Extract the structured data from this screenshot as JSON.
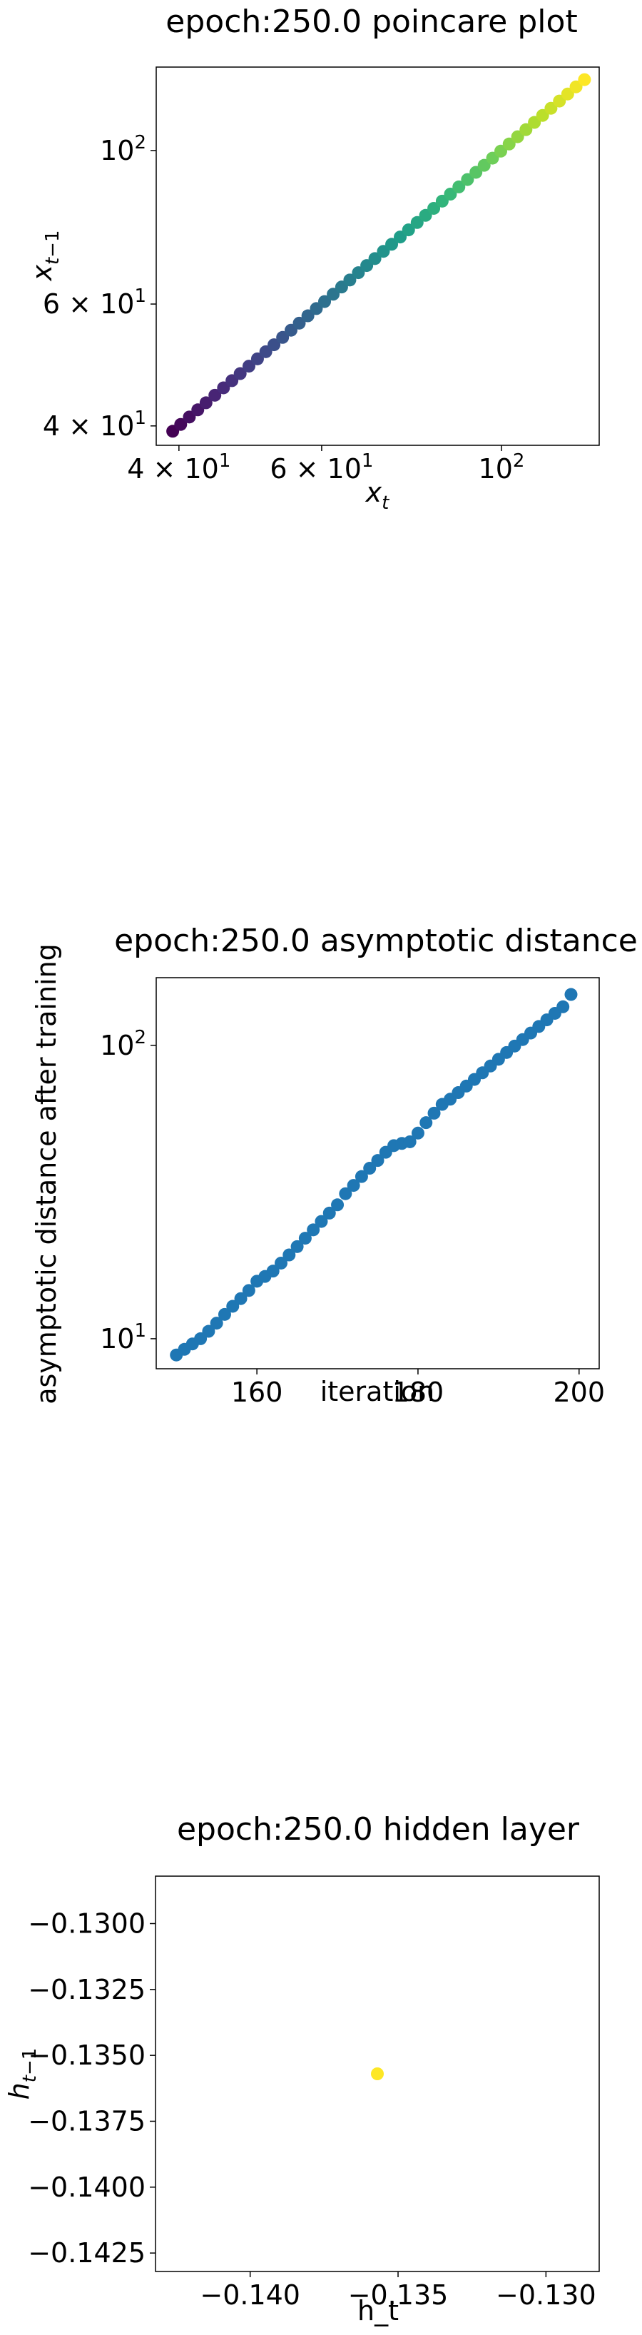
{
  "chart_data": [
    {
      "type": "scatter",
      "title": "epoch:250.0 poincare plot",
      "xlabel": "x_t",
      "ylabel": "x_{t-1}",
      "xscale": "log",
      "yscale": "log",
      "xlim": [
        37.5,
        132
      ],
      "ylim": [
        37.5,
        132
      ],
      "colormap": "viridis",
      "x_ticks": [
        {
          "value": 40,
          "mant": "4",
          "exp": "1"
        },
        {
          "value": 60,
          "mant": "6",
          "exp": "1"
        },
        {
          "value": 100,
          "mant": "",
          "exp": "2"
        }
      ],
      "y_ticks": [
        {
          "value": 40,
          "mant": "4",
          "exp": "1"
        },
        {
          "value": 60,
          "mant": "6",
          "exp": "1"
        },
        {
          "value": 100,
          "mant": "",
          "exp": "2"
        }
      ],
      "x": [
        39.3,
        40.2,
        41.2,
        42.2,
        43.2,
        44.3,
        45.4,
        46.5,
        47.6,
        48.8,
        50.0,
        51.2,
        52.4,
        53.7,
        55.0,
        56.3,
        57.7,
        59.1,
        60.5,
        62.0,
        63.5,
        65.0,
        66.6,
        68.2,
        69.8,
        71.5,
        73.2,
        75.0,
        76.8,
        78.7,
        80.6,
        82.5,
        84.5,
        86.5,
        88.6,
        90.8,
        93.0,
        95.2,
        97.5,
        99.8,
        102.2,
        104.7,
        107.2,
        109.8,
        112.4,
        115.1,
        117.9,
        120.7,
        123.6,
        126.6
      ],
      "y": [
        39.3,
        40.2,
        41.2,
        42.2,
        43.2,
        44.3,
        45.4,
        46.5,
        47.6,
        48.8,
        50.0,
        51.2,
        52.4,
        53.7,
        55.0,
        56.3,
        57.7,
        59.1,
        60.5,
        62.0,
        63.5,
        65.0,
        66.6,
        68.2,
        69.8,
        71.5,
        73.2,
        75.0,
        76.8,
        78.7,
        80.6,
        82.5,
        84.5,
        86.5,
        88.6,
        90.8,
        93.0,
        95.2,
        97.5,
        99.8,
        102.2,
        104.7,
        107.2,
        109.8,
        112.4,
        115.1,
        117.9,
        120.7,
        123.6,
        126.6
      ],
      "grid": false
    },
    {
      "type": "scatter",
      "title": "epoch:250.0 asymptotic distance",
      "xlabel": "iteration",
      "ylabel": "asymptotic distance after training",
      "xscale": "linear",
      "yscale": "log",
      "xlim": [
        147.5,
        202.5
      ],
      "ylim": [
        7.9,
        170
      ],
      "color": "#1f77b4",
      "x_ticks": [
        {
          "value": 160,
          "label": "160"
        },
        {
          "value": 180,
          "label": "180"
        },
        {
          "value": 200,
          "label": "200"
        }
      ],
      "y_ticks": [
        {
          "value": 10,
          "mant": "",
          "exp": "1"
        },
        {
          "value": 100,
          "mant": "",
          "exp": "2"
        }
      ],
      "x": [
        150,
        151,
        152,
        153,
        154,
        155,
        156,
        157,
        158,
        159,
        160,
        161,
        162,
        163,
        164,
        165,
        166,
        167,
        168,
        169,
        170,
        171,
        172,
        173,
        174,
        175,
        176,
        177,
        178,
        179,
        180,
        181,
        182,
        183,
        184,
        185,
        186,
        187,
        188,
        189,
        190,
        191,
        192,
        193,
        194,
        195,
        196,
        197,
        198,
        199
      ],
      "y": [
        8.8,
        9.2,
        9.6,
        10.0,
        10.6,
        11.3,
        12.1,
        12.9,
        13.7,
        14.6,
        15.7,
        16.3,
        17.0,
        18.1,
        19.3,
        20.6,
        22.0,
        23.5,
        25.1,
        26.8,
        28.6,
        31.2,
        33.3,
        35.7,
        38.1,
        40.5,
        43.2,
        45.5,
        46.3,
        46.9,
        50.2,
        54.5,
        58.7,
        62.9,
        65.5,
        69.0,
        72.6,
        76.5,
        80.6,
        85.0,
        89.6,
        94.5,
        99.4,
        104.6,
        110.1,
        115.9,
        122.1,
        128.5,
        135.3,
        149.0
      ],
      "grid": false
    },
    {
      "type": "scatter",
      "title": "epoch:250.0 hidden layer",
      "xlabel": "h_t",
      "ylabel": "h_{t-1}",
      "xscale": "linear",
      "yscale": "linear",
      "xlim": [
        -0.1432,
        -0.1282
      ],
      "ylim": [
        -0.1432,
        -0.1282
      ],
      "color": "#fde725",
      "x_ticks": [
        {
          "value": -0.14,
          "label": "−0.140"
        },
        {
          "value": -0.135,
          "label": "−0.135"
        },
        {
          "value": -0.13,
          "label": "−0.130"
        }
      ],
      "y_ticks": [
        {
          "value": -0.13,
          "label": "−0.1300"
        },
        {
          "value": -0.1325,
          "label": "−0.1325"
        },
        {
          "value": -0.135,
          "label": "−0.1350"
        },
        {
          "value": -0.1375,
          "label": "−0.1375"
        },
        {
          "value": -0.14,
          "label": "−0.1400"
        },
        {
          "value": -0.1425,
          "label": "−0.1425"
        }
      ],
      "x": [
        -0.1357
      ],
      "y": [
        -0.1357
      ],
      "grid": false
    }
  ]
}
